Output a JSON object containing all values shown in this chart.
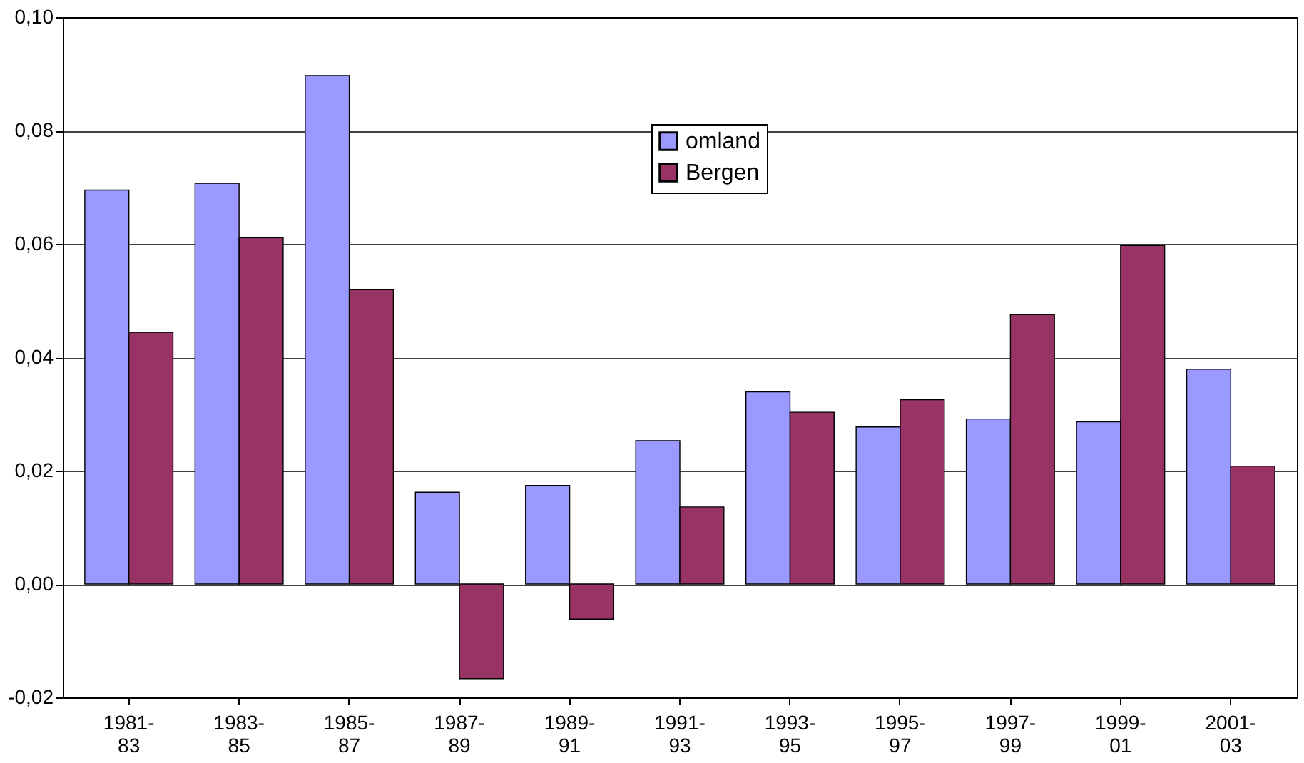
{
  "chart_data": {
    "type": "bar",
    "categories": [
      "1981-83",
      "1983-85",
      "1985-87",
      "1987-89",
      "1989-91",
      "1991-93",
      "1993-95",
      "1995-97",
      "1997-99",
      "1999-01",
      "2001-03"
    ],
    "series": [
      {
        "name": "omland",
        "color": "#9999ff",
        "values": [
          0.0695,
          0.0707,
          0.0897,
          0.0162,
          0.0174,
          0.0253,
          0.0339,
          0.0277,
          0.0291,
          0.0286,
          0.0379
        ]
      },
      {
        "name": "Bergen",
        "color": "#993366",
        "values": [
          0.0444,
          0.0611,
          0.052,
          -0.0167,
          -0.0062,
          0.0136,
          0.0303,
          0.0325,
          0.0475,
          0.0597,
          0.0208
        ]
      }
    ],
    "ylim": [
      -0.02,
      0.1
    ],
    "yticks": [
      {
        "value": -0.02,
        "label": "-0,02"
      },
      {
        "value": 0,
        "label": "0,00"
      },
      {
        "value": 0.02,
        "label": "0,02"
      },
      {
        "value": 0.04,
        "label": "0,04"
      },
      {
        "value": 0.06,
        "label": "0,06"
      },
      {
        "value": 0.08,
        "label": "0,08"
      },
      {
        "value": 0.1,
        "label": "0,10"
      }
    ],
    "grid": "y",
    "legend": "top"
  }
}
